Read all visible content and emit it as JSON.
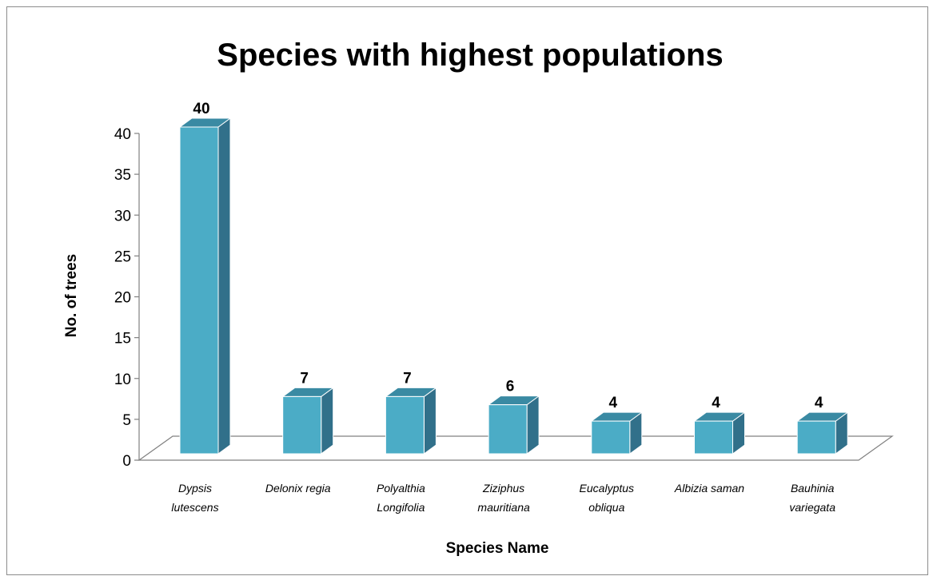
{
  "chart_data": {
    "type": "bar",
    "title": "Species with highest populations",
    "xlabel": "Species Name",
    "ylabel": "No. of trees",
    "ylim": [
      0,
      40
    ],
    "yticks": [
      0,
      5,
      10,
      15,
      20,
      25,
      30,
      35,
      40
    ],
    "grid": false,
    "legend": "none",
    "categories": [
      [
        "Dypsis",
        "lutescens"
      ],
      [
        "Delonix regia"
      ],
      [
        "Polyalthia",
        "Longifolia"
      ],
      [
        "Ziziphus",
        "mauritiana"
      ],
      [
        "Eucalyptus",
        "obliqua"
      ],
      [
        "Albizia saman"
      ],
      [
        "Bauhinia",
        "variegata"
      ]
    ],
    "values": [
      40,
      7,
      7,
      6,
      4,
      4,
      4
    ],
    "colors": {
      "bar_front": "#4bacc6",
      "bar_side": "#31708a",
      "bar_top": "#3a8aa3",
      "floor": "#ffffff",
      "axis": "#808080"
    }
  }
}
